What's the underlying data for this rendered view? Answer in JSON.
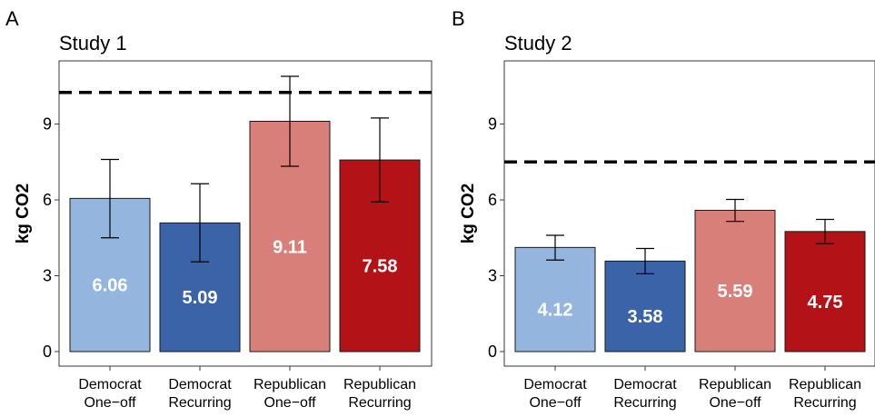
{
  "chart_data": [
    {
      "type": "bar",
      "panel_letter": "A",
      "title": "Study 1",
      "ylabel": "kg CO2",
      "ylim": [
        0,
        11.5
      ],
      "yticks": [
        0,
        3,
        6,
        9
      ],
      "categories": [
        "Democrat\nOne−off",
        "Democrat\nRecurring",
        "Republican\nOne−off",
        "Republican\nRecurring"
      ],
      "values": [
        6.06,
        5.09,
        9.11,
        7.58
      ],
      "value_labels": [
        "6.06",
        "5.09",
        "9.11",
        "7.58"
      ],
      "error_low": [
        4.5,
        3.55,
        7.33,
        5.92
      ],
      "error_high": [
        7.6,
        6.64,
        10.89,
        9.24
      ],
      "reference_line": 10.25,
      "colors": [
        "#93b5de",
        "#3a63a8",
        "#d97f79",
        "#b31217"
      ],
      "grid": false
    },
    {
      "type": "bar",
      "panel_letter": "B",
      "title": "Study 2",
      "ylabel": "kg CO2",
      "ylim": [
        0,
        11.5
      ],
      "yticks": [
        0,
        3,
        6,
        9
      ],
      "categories": [
        "Democrat\nOne−off",
        "Democrat\nRecurring",
        "Republican\nOne−off",
        "Republican\nRecurring"
      ],
      "values": [
        4.12,
        3.58,
        5.59,
        4.75
      ],
      "value_labels": [
        "4.12",
        "3.58",
        "5.59",
        "4.75"
      ],
      "error_low": [
        3.62,
        3.08,
        5.15,
        4.27
      ],
      "error_high": [
        4.6,
        4.08,
        6.02,
        5.23
      ],
      "reference_line": 7.5,
      "colors": [
        "#93b5de",
        "#3a63a8",
        "#d97f79",
        "#b31217"
      ],
      "grid": false
    }
  ]
}
